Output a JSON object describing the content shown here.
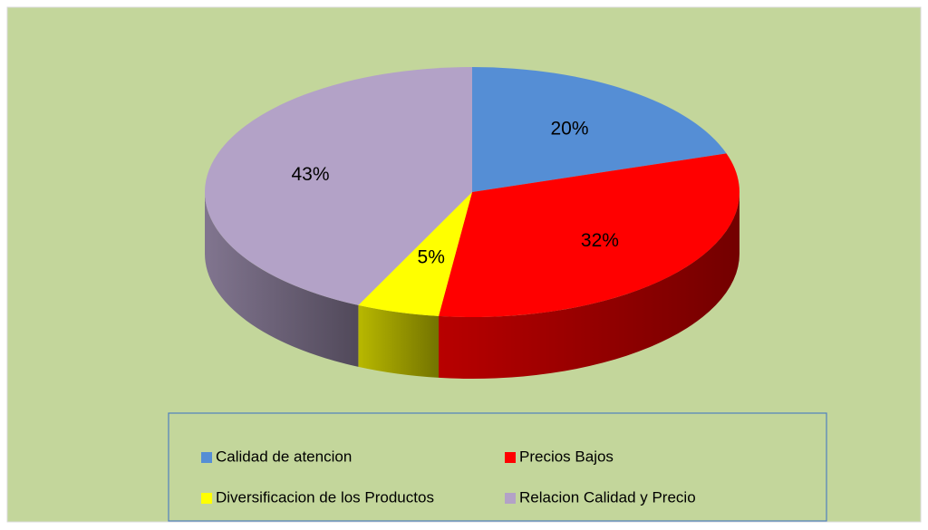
{
  "chart_data": {
    "type": "pie",
    "categories": [
      "Calidad de atencion",
      "Precios Bajos",
      "Diversificacion de los Productos",
      "Relacion Calidad y Precio"
    ],
    "values": [
      20,
      32,
      5,
      43
    ],
    "value_labels": [
      "20%",
      "32%",
      "5%",
      "43%"
    ],
    "colors": [
      "#558ed5",
      "#ff0000",
      "#ffff00",
      "#b3a2c7"
    ],
    "three_d": true,
    "background": "#c3d69b"
  }
}
